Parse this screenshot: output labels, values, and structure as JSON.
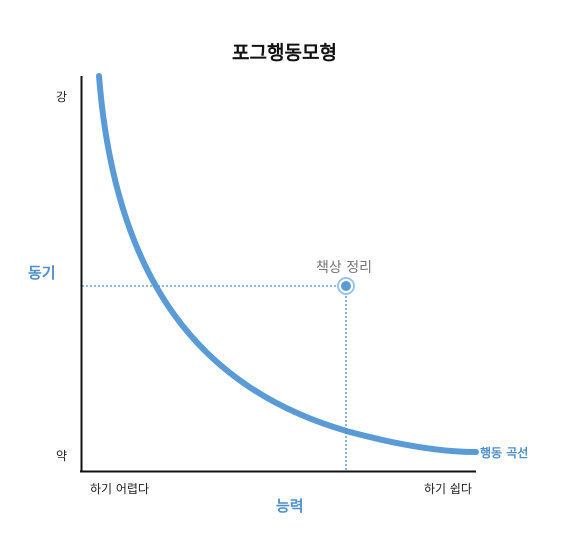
{
  "title": "포그행동모형",
  "axes": {
    "y_label": "동기",
    "x_label": "능력",
    "y_top": "강",
    "y_bottom": "약",
    "x_left": "하기 어렵다",
    "x_right": "하기 쉽다"
  },
  "curve": {
    "label": "행동 곡선",
    "color": "#5b9bd5"
  },
  "point": {
    "label": "책상 정리",
    "color": "#5b9bd5"
  },
  "colors": {
    "axis": "#111111",
    "accent": "#4f8fca",
    "guide": "#4f8fca"
  }
}
